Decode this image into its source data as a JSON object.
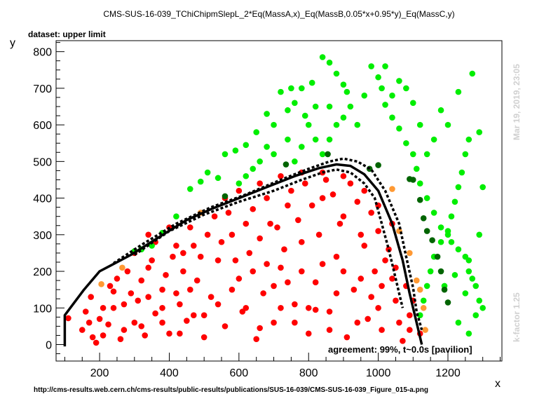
{
  "chart_data": {
    "type": "scatter",
    "title": "CMS-SUS-16-039_TChiChipmSlepL_2*Eq(MassA,x)_Eq(MassB,0.05*x+0.95*y)_Eq(MassC,y)",
    "dataset_label": "dataset: upper limit",
    "xlabel": "x",
    "ylabel": "y",
    "xlim": [
      75,
      1355
    ],
    "ylim": [
      -45,
      830
    ],
    "x_ticks": [
      200,
      400,
      600,
      800,
      1000,
      1200
    ],
    "y_ticks": [
      0,
      100,
      200,
      300,
      400,
      500,
      600,
      700,
      800
    ],
    "grid": false,
    "right_note_top": "Mar 19, 2019, 23:05",
    "right_note_bottom": "k-factor 1.25",
    "agreement_text": "agreement: 99%, t~0.0s [pavilion]",
    "footer_url": "http://cms-results.web.cern.ch/cms-results/public-results/publications/SUS-16-039/CMS-SUS-16-039_Figure_015-a.png",
    "colors": {
      "excluded": "#ff0000",
      "allowed": "#00ee00",
      "excluded_dark": "#006400",
      "border": "#ff9933",
      "line": "#000000"
    },
    "series": [
      {
        "kind": "excluded",
        "points": [
          [
            110,
            72
          ],
          [
            150,
            40
          ],
          [
            175,
            130
          ],
          [
            180,
            20
          ],
          [
            190,
            5
          ],
          [
            210,
            100
          ],
          [
            225,
            55
          ],
          [
            240,
            145
          ],
          [
            260,
            15
          ],
          [
            280,
            200
          ],
          [
            250,
            180
          ],
          [
            300,
            60
          ],
          [
            310,
            120
          ],
          [
            330,
            25
          ],
          [
            340,
            210
          ],
          [
            360,
            85
          ],
          [
            380,
            150
          ],
          [
            400,
            30
          ],
          [
            410,
            240
          ],
          [
            430,
            110
          ],
          [
            450,
            65
          ],
          [
            470,
            270
          ],
          [
            480,
            175
          ],
          [
            500,
            20
          ],
          [
            520,
            130
          ],
          [
            540,
            230
          ],
          [
            560,
            50
          ],
          [
            580,
            300
          ],
          [
            600,
            180
          ],
          [
            610,
            90
          ],
          [
            630,
            250
          ],
          [
            650,
            15
          ],
          [
            670,
            140
          ],
          [
            690,
            330
          ],
          [
            700,
            60
          ],
          [
            720,
            210
          ],
          [
            740,
            380
          ],
          [
            760,
            110
          ],
          [
            780,
            280
          ],
          [
            800,
            30
          ],
          [
            820,
            170
          ],
          [
            840,
            400
          ],
          [
            860,
            90
          ],
          [
            880,
            240
          ],
          [
            900,
            350
          ],
          [
            910,
            20
          ],
          [
            930,
            150
          ],
          [
            950,
            300
          ],
          [
            970,
            70
          ],
          [
            990,
            200
          ],
          [
            1010,
            40
          ],
          [
            1030,
            260
          ],
          [
            1050,
            120
          ],
          [
            1070,
            10
          ],
          [
            1090,
            80
          ],
          [
            1120,
            30
          ],
          [
            160,
            90
          ],
          [
            230,
            160
          ],
          [
            270,
            110
          ],
          [
            320,
            175
          ],
          [
            350,
            230
          ],
          [
            390,
            190
          ],
          [
            420,
            270
          ],
          [
            440,
            200
          ],
          [
            460,
            320
          ],
          [
            490,
            240
          ],
          [
            510,
            300
          ],
          [
            530,
            350
          ],
          [
            550,
            280
          ],
          [
            570,
            360
          ],
          [
            590,
            230
          ],
          [
            620,
            330
          ],
          [
            640,
            370
          ],
          [
            660,
            290
          ],
          [
            680,
            400
          ],
          [
            710,
            320
          ],
          [
            730,
            260
          ],
          [
            750,
            420
          ],
          [
            770,
            340
          ],
          [
            790,
            440
          ],
          [
            810,
            380
          ],
          [
            830,
            300
          ],
          [
            850,
            450
          ],
          [
            870,
            410
          ],
          [
            890,
            330
          ],
          [
            920,
            440
          ],
          [
            940,
            390
          ],
          [
            960,
            270
          ],
          [
            980,
            360
          ],
          [
            1000,
            310
          ],
          [
            1020,
            230
          ],
          [
            1040,
            180
          ],
          [
            620,
            100
          ],
          [
            660,
            45
          ],
          [
            700,
            160
          ],
          [
            760,
            60
          ],
          [
            820,
            95
          ],
          [
            880,
            140
          ],
          [
            940,
            60
          ],
          [
            1000,
            100
          ],
          [
            1060,
            60
          ],
          [
            470,
            80
          ],
          [
            430,
            30
          ],
          [
            380,
            60
          ],
          [
            320,
            50
          ],
          [
            270,
            40
          ],
          [
            210,
            25
          ],
          [
            360,
            280
          ],
          [
            400,
            320
          ],
          [
            440,
            250
          ],
          [
            300,
            250
          ],
          [
            340,
            300
          ],
          [
            560,
            400
          ],
          [
            600,
            420
          ],
          [
            660,
            440
          ],
          [
            720,
            460
          ],
          [
            780,
            470
          ],
          [
            840,
            470
          ],
          [
            900,
            460
          ],
          [
            960,
            420
          ],
          [
            1000,
            380
          ],
          [
            1040,
            330
          ],
          [
            950,
            180
          ],
          [
            980,
            130
          ],
          [
            1010,
            160
          ],
          [
            1050,
            210
          ],
          [
            1080,
            160
          ],
          [
            1100,
            120
          ],
          [
            1090,
            40
          ],
          [
            720,
            100
          ],
          [
            780,
            200
          ],
          [
            840,
            220
          ],
          [
            900,
            200
          ],
          [
            860,
            40
          ],
          [
            800,
            100
          ],
          [
            740,
            170
          ],
          [
            680,
            220
          ],
          [
            640,
            200
          ],
          [
            580,
            150
          ],
          [
            540,
            110
          ],
          [
            500,
            80
          ],
          [
            460,
            150
          ],
          [
            420,
            140
          ],
          [
            380,
            100
          ],
          [
            340,
            130
          ],
          [
            290,
            140
          ],
          [
            240,
            100
          ],
          [
            200,
            70
          ],
          [
            170,
            60
          ]
        ]
      },
      {
        "kind": "allowed",
        "points": [
          [
            300,
            255
          ],
          [
            320,
            260
          ],
          [
            350,
            270
          ],
          [
            380,
            305
          ],
          [
            420,
            350
          ],
          [
            460,
            425
          ],
          [
            490,
            445
          ],
          [
            510,
            470
          ],
          [
            540,
            455
          ],
          [
            560,
            520
          ],
          [
            590,
            530
          ],
          [
            620,
            545
          ],
          [
            650,
            580
          ],
          [
            680,
            630
          ],
          [
            700,
            600
          ],
          [
            720,
            690
          ],
          [
            740,
            640
          ],
          [
            760,
            660
          ],
          [
            790,
            625
          ],
          [
            810,
            715
          ],
          [
            840,
            785
          ],
          [
            860,
            770
          ],
          [
            880,
            740
          ],
          [
            900,
            710
          ],
          [
            910,
            690
          ],
          [
            920,
            650
          ],
          [
            940,
            600
          ],
          [
            960,
            680
          ],
          [
            980,
            760
          ],
          [
            1000,
            730
          ],
          [
            1010,
            700
          ],
          [
            1020,
            655
          ],
          [
            1040,
            620
          ],
          [
            1060,
            590
          ],
          [
            1080,
            550
          ],
          [
            1100,
            520
          ],
          [
            1110,
            480
          ],
          [
            1120,
            440
          ],
          [
            1140,
            400
          ],
          [
            1160,
            360
          ],
          [
            1180,
            320
          ],
          [
            1200,
            300
          ],
          [
            1210,
            280
          ],
          [
            1230,
            260
          ],
          [
            1250,
            240
          ],
          [
            1260,
            200
          ],
          [
            1270,
            180
          ],
          [
            1280,
            160
          ],
          [
            1290,
            120
          ],
          [
            1300,
            100
          ],
          [
            1270,
            740
          ],
          [
            1260,
            560
          ],
          [
            1250,
            520
          ],
          [
            1240,
            470
          ],
          [
            1230,
            430
          ],
          [
            1220,
            390
          ],
          [
            1210,
            350
          ],
          [
            1200,
            310
          ],
          [
            1180,
            280
          ],
          [
            1160,
            240
          ],
          [
            1150,
            200
          ],
          [
            1140,
            160
          ],
          [
            1130,
            120
          ],
          [
            1120,
            80
          ],
          [
            1230,
            60
          ],
          [
            1260,
            30
          ],
          [
            1280,
            80
          ],
          [
            1250,
            140
          ],
          [
            1200,
            600
          ],
          [
            1180,
            640
          ],
          [
            1160,
            560
          ],
          [
            1140,
            520
          ],
          [
            1120,
            600
          ],
          [
            1100,
            660
          ],
          [
            1080,
            700
          ],
          [
            1060,
            720
          ],
          [
            1040,
            680
          ],
          [
            1020,
            760
          ],
          [
            900,
            620
          ],
          [
            880,
            600
          ],
          [
            860,
            560
          ],
          [
            840,
            520
          ],
          [
            820,
            560
          ],
          [
            800,
            600
          ],
          [
            780,
            540
          ],
          [
            760,
            500
          ],
          [
            740,
            560
          ],
          [
            700,
            520
          ],
          [
            680,
            540
          ],
          [
            660,
            500
          ],
          [
            640,
            480
          ],
          [
            620,
            460
          ],
          [
            600,
            440
          ],
          [
            860,
            650
          ],
          [
            820,
            650
          ],
          [
            780,
            700
          ],
          [
            750,
            700
          ],
          [
            1230,
            690
          ],
          [
            1290,
            580
          ],
          [
            1300,
            430
          ],
          [
            1290,
            300
          ],
          [
            1260,
            230
          ],
          [
            1220,
            190
          ],
          [
            1190,
            160
          ]
        ]
      },
      {
        "kind": "excluded_dark",
        "points": [
          [
            560,
            405
          ],
          [
            735,
            492
          ],
          [
            855,
            520
          ],
          [
            975,
            480
          ],
          [
            1000,
            490
          ],
          [
            1090,
            452
          ],
          [
            1100,
            450
          ],
          [
            1120,
            395
          ],
          [
            1130,
            345
          ],
          [
            1140,
            310
          ],
          [
            1155,
            285
          ],
          [
            1170,
            240
          ],
          [
            1180,
            200
          ],
          [
            1190,
            150
          ],
          [
            1200,
            115
          ]
        ]
      },
      {
        "kind": "border",
        "points": [
          [
            205,
            165
          ],
          [
            265,
            210
          ],
          [
            490,
            360
          ],
          [
            1040,
            425
          ],
          [
            1060,
            310
          ],
          [
            1090,
            250
          ],
          [
            1110,
            175
          ],
          [
            1120,
            150
          ],
          [
            1130,
            100
          ],
          [
            1135,
            40
          ]
        ]
      }
    ],
    "exclusion_curve": [
      [
        100,
        -5
      ],
      [
        100,
        80
      ],
      [
        155,
        150
      ],
      [
        200,
        200
      ],
      [
        240,
        220
      ],
      [
        290,
        245
      ],
      [
        340,
        275
      ],
      [
        390,
        305
      ],
      [
        450,
        340
      ],
      [
        520,
        370
      ],
      [
        600,
        400
      ],
      [
        680,
        430
      ],
      [
        760,
        460
      ],
      [
        830,
        482
      ],
      [
        880,
        492
      ],
      [
        920,
        488
      ],
      [
        960,
        465
      ],
      [
        1000,
        420
      ],
      [
        1040,
        330
      ],
      [
        1070,
        230
      ],
      [
        1090,
        140
      ],
      [
        1110,
        60
      ],
      [
        1125,
        0
      ]
    ],
    "exclusion_curve_up": [
      [
        240,
        222
      ],
      [
        320,
        272
      ],
      [
        420,
        330
      ],
      [
        520,
        375
      ],
      [
        620,
        410
      ],
      [
        720,
        450
      ],
      [
        800,
        480
      ],
      [
        860,
        500
      ],
      [
        900,
        508
      ],
      [
        940,
        500
      ],
      [
        980,
        478
      ],
      [
        1020,
        420
      ],
      [
        1060,
        330
      ],
      [
        1080,
        240
      ],
      [
        1100,
        155
      ],
      [
        1110,
        90
      ],
      [
        1125,
        40
      ]
    ],
    "exclusion_curve_down": [
      [
        300,
        245
      ],
      [
        400,
        310
      ],
      [
        500,
        355
      ],
      [
        600,
        390
      ],
      [
        700,
        420
      ],
      [
        780,
        450
      ],
      [
        840,
        470
      ],
      [
        880,
        478
      ],
      [
        920,
        470
      ],
      [
        960,
        440
      ],
      [
        990,
        400
      ],
      [
        1010,
        330
      ],
      [
        1030,
        260
      ],
      [
        1045,
        200
      ],
      [
        1060,
        140
      ],
      [
        1070,
        100
      ]
    ]
  }
}
